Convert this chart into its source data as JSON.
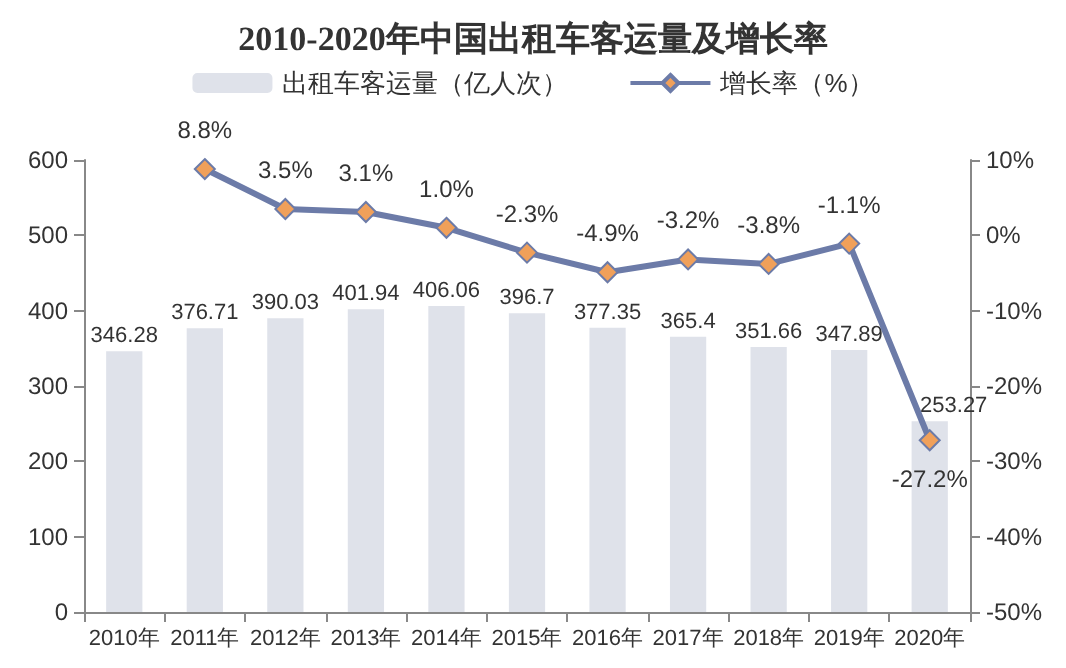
{
  "chart_data": {
    "type": "bar",
    "title": "2010-2020年中国出租车客运量及增长率",
    "categories": [
      "2010年",
      "2011年",
      "2012年",
      "2013年",
      "2014年",
      "2015年",
      "2016年",
      "2017年",
      "2018年",
      "2019年",
      "2020年"
    ],
    "series": [
      {
        "name": "出租车客运量（亿人次）",
        "color": "#dfe2ea",
        "values": [
          346.28,
          376.71,
          390.03,
          401.94,
          406.06,
          396.7,
          377.35,
          365.4,
          351.66,
          347.89,
          253.27
        ],
        "value_labels": [
          "346.28",
          "376.71",
          "390.03",
          "401.94",
          "406.06",
          "396.7",
          "377.35",
          "365.4",
          "351.66",
          "347.89",
          "253.27"
        ]
      },
      {
        "name": "增长率（%）",
        "type": "line",
        "axis": "y2",
        "color": "#6c7ba8",
        "values": [
          null,
          8.8,
          3.5,
          3.1,
          1.0,
          -2.3,
          -4.9,
          -3.2,
          -3.8,
          -1.1,
          -27.2
        ],
        "value_labels": [
          null,
          "8.8%",
          "3.5%",
          "3.1%",
          "1.0%",
          "-2.3%",
          "-4.9%",
          "-3.2%",
          "-3.8%",
          "-1.1%",
          "-27.2%"
        ]
      }
    ],
    "ylim": [
      0,
      600
    ],
    "yticks": [
      0,
      100,
      200,
      300,
      400,
      500,
      600
    ],
    "y2lim": [
      -50,
      10
    ],
    "y2ticks": [
      {
        "value": -50,
        "label": "-50%"
      },
      {
        "value": -40,
        "label": "-40%"
      },
      {
        "value": -30,
        "label": "-30%"
      },
      {
        "value": -20,
        "label": "-20%"
      },
      {
        "value": -10,
        "label": "-10%"
      },
      {
        "value": 0,
        "label": "0%"
      },
      {
        "value": 10,
        "label": "10%"
      }
    ],
    "marker": "diamond",
    "legend": "top",
    "grid": false
  }
}
